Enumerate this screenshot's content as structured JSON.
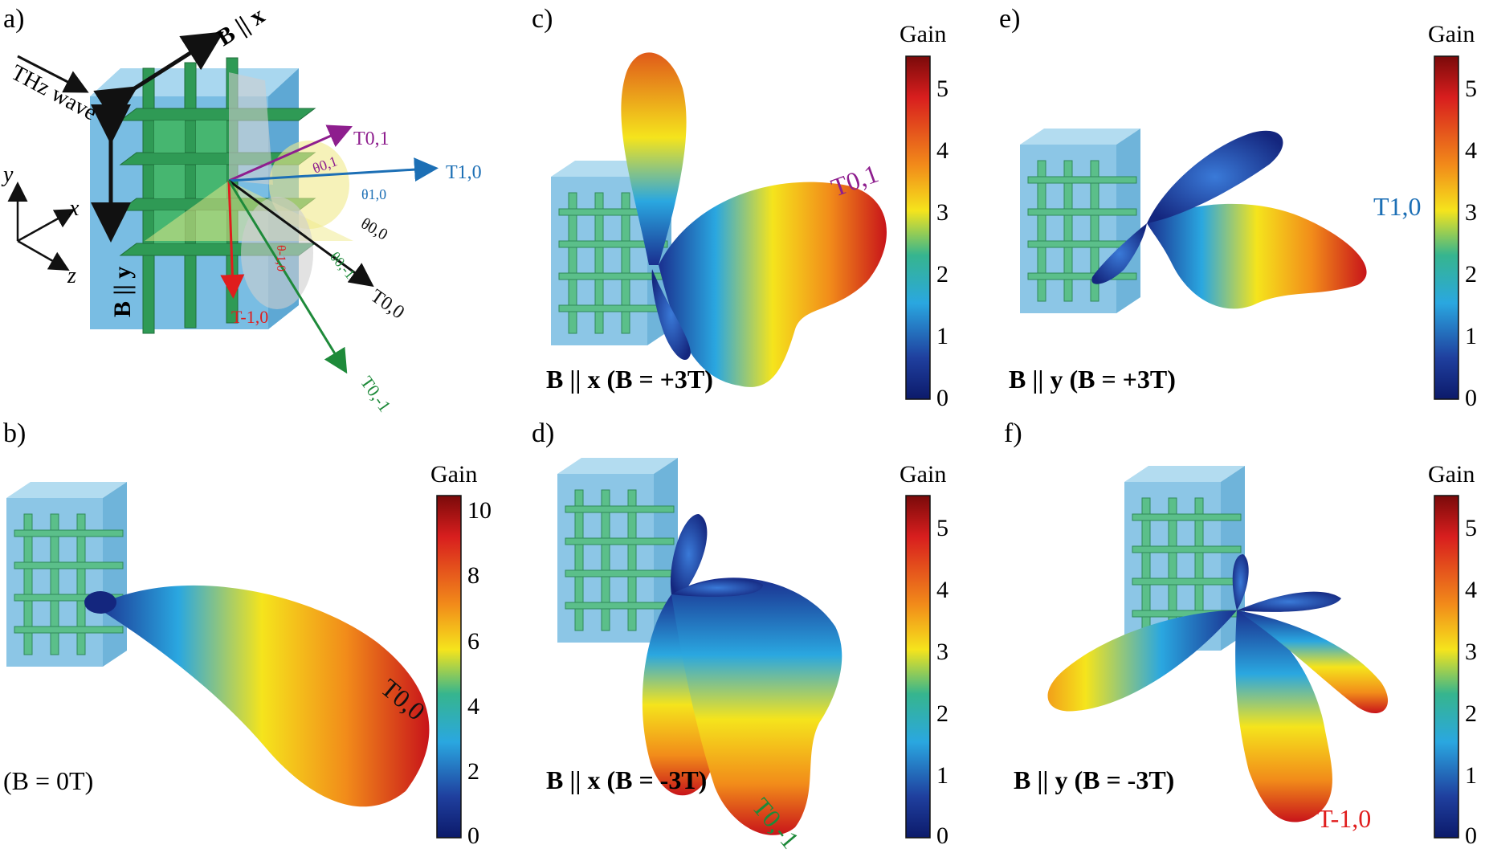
{
  "panels": {
    "a": {
      "letter": "a)",
      "field_x": "B || x",
      "field_y": "B || y",
      "wave_label": "THz wave",
      "axes": [
        "y",
        "x",
        "z"
      ],
      "beams": [
        {
          "label": "T0,1",
          "color": "#8e1e8e"
        },
        {
          "label": "T1,0",
          "color": "#1c6fb5"
        },
        {
          "label": "T0,0",
          "color": "#111111"
        },
        {
          "label": "T-1,0",
          "color": "#e01d1d"
        },
        {
          "label": "T0,-1",
          "color": "#1e8a3a"
        }
      ],
      "angles": [
        "θ0,1",
        "θ1,0",
        "θ0,0",
        "θ-1,0",
        "θ0,-1"
      ]
    },
    "b": {
      "letter": "b)",
      "condition": "(B = 0T)",
      "beam": "T0,0",
      "beam_color": "#111111"
    },
    "c": {
      "letter": "c)",
      "condition": "B || x (B = +3T)",
      "beam": "T0,1",
      "beam_color": "#8e1e8e"
    },
    "d": {
      "letter": "d)",
      "condition": "B || x (B = -3T)",
      "beam": "T0,-1",
      "beam_color": "#1e8a3a"
    },
    "e": {
      "letter": "e)",
      "condition": "B || y (B = +3T)",
      "beam": "T1,0",
      "beam_color": "#1c6fb5"
    },
    "f": {
      "letter": "f)",
      "condition": "B || y (B = -3T)",
      "beam": "T-1,0",
      "beam_color": "#e01d1d"
    }
  },
  "colorbars": [
    {
      "panel": "c",
      "title": "Gain",
      "ticks": [
        "5",
        "4",
        "3",
        "2",
        "1",
        "0"
      ],
      "range": [
        0,
        5.5
      ]
    },
    {
      "panel": "e",
      "title": "Gain",
      "ticks": [
        "5",
        "4",
        "3",
        "2",
        "1",
        "0"
      ],
      "range": [
        0,
        5.5
      ]
    },
    {
      "panel": "b",
      "title": "Gain",
      "ticks": [
        "10",
        "8",
        "6",
        "4",
        "2",
        "0"
      ],
      "range": [
        0,
        10.5
      ]
    },
    {
      "panel": "d",
      "title": "Gain",
      "ticks": [
        "5",
        "4",
        "3",
        "2",
        "1",
        "0"
      ],
      "range": [
        0,
        5.5
      ]
    },
    {
      "panel": "f",
      "title": "Gain",
      "ticks": [
        "5",
        "4",
        "3",
        "2",
        "1",
        "0"
      ],
      "range": [
        0,
        5.5
      ]
    }
  ],
  "colormap": [
    "#7a0a0a",
    "#d81e1e",
    "#f28c1a",
    "#f5e41c",
    "#36b58e",
    "#2aa7e0",
    "#1f3f9e",
    "#0c1a6a"
  ]
}
